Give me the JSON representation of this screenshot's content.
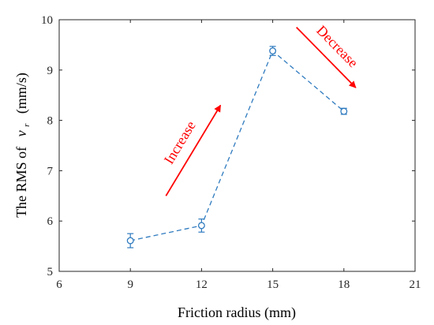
{
  "chart_data": {
    "type": "line",
    "xlabel": "Friction radius (mm)",
    "ylabel": {
      "prefix": "The RMS of",
      "variable": "v",
      "subscript": "r",
      "unit": "(mm/s)"
    },
    "xlim": [
      6,
      21
    ],
    "ylim": [
      5,
      10
    ],
    "xticks": [
      6,
      9,
      12,
      15,
      18,
      21
    ],
    "yticks": [
      5,
      6,
      7,
      8,
      9,
      10
    ],
    "grid": false,
    "series": [
      {
        "x": [
          9,
          12,
          15,
          18
        ],
        "y": [
          5.61,
          5.91,
          9.38,
          8.18
        ],
        "error": [
          0.14,
          0.13,
          0.09,
          0.06
        ],
        "color": "#2f7bbf",
        "line_style": "dashed",
        "marker": "circle"
      }
    ],
    "annotations": [
      {
        "text": "Increase",
        "color": "#ff0000",
        "arrow_from": [
          10.5,
          6.5
        ],
        "arrow_to": [
          12.8,
          8.3
        ],
        "arrow_color": "#ff0000"
      },
      {
        "text": "Decrease",
        "color": "#ff0000",
        "arrow_from": [
          16.0,
          9.85
        ],
        "arrow_to": [
          18.5,
          8.65
        ],
        "arrow_color": "#ff0000"
      }
    ]
  }
}
